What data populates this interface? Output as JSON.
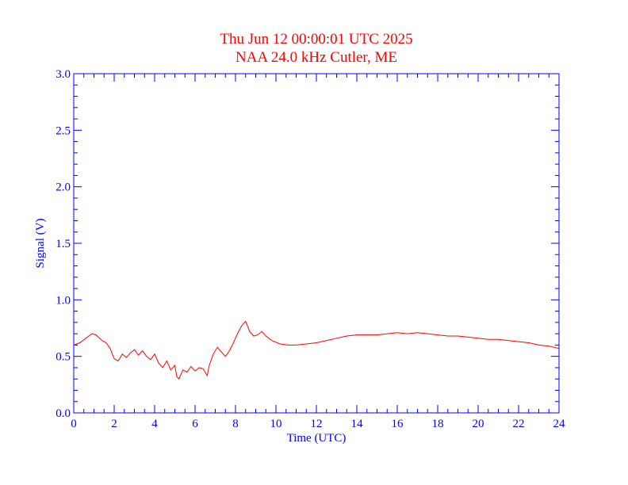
{
  "chart_data": {
    "type": "line",
    "title": "Thu Jun 12 00:00:01 UTC 2025",
    "subtitle": "NAA 24.0 kHz Cutler, ME",
    "xlabel": "Time (UTC)",
    "ylabel": "Signal (V)",
    "xlim": [
      0,
      24
    ],
    "ylim": [
      0,
      3.0
    ],
    "x_ticks": [
      "0",
      "2",
      "4",
      "6",
      "8",
      "10",
      "12",
      "14",
      "16",
      "18",
      "20",
      "22",
      "24"
    ],
    "y_ticks": [
      "0.0",
      "0.5",
      "1.0",
      "1.5",
      "2.0",
      "2.5",
      "3.0"
    ],
    "grid": false,
    "colors": {
      "axis": "#0000ff",
      "series": "#ff0000",
      "title": "#ff0000"
    },
    "series": [
      {
        "x": [
          0,
          0.3,
          0.6,
          0.9,
          1.1,
          1.4,
          1.6,
          1.8,
          2.0,
          2.2,
          2.4,
          2.6,
          2.8,
          3.0,
          3.2,
          3.4,
          3.6,
          3.8,
          4.0,
          4.2,
          4.4,
          4.6,
          4.8,
          5.0,
          5.1,
          5.2,
          5.4,
          5.6,
          5.8,
          6.0,
          6.2,
          6.4,
          6.6,
          6.7,
          6.9,
          7.1,
          7.3,
          7.5,
          7.7,
          7.9,
          8.1,
          8.3,
          8.5,
          8.7,
          8.9,
          9.1,
          9.3,
          9.5,
          9.8,
          10.2,
          10.6,
          11.0,
          11.5,
          12.0,
          12.5,
          13.0,
          13.5,
          14.0,
          14.5,
          15.0,
          15.5,
          16.0,
          16.5,
          17.0,
          17.5,
          18.0,
          18.5,
          19.0,
          19.5,
          20.0,
          20.5,
          21.0,
          21.5,
          22.0,
          22.5,
          23.0,
          23.5,
          24.0
        ],
        "values": [
          0.6,
          0.62,
          0.66,
          0.7,
          0.69,
          0.64,
          0.62,
          0.57,
          0.48,
          0.46,
          0.52,
          0.49,
          0.53,
          0.56,
          0.51,
          0.55,
          0.5,
          0.47,
          0.52,
          0.44,
          0.4,
          0.46,
          0.38,
          0.42,
          0.32,
          0.3,
          0.38,
          0.36,
          0.41,
          0.37,
          0.4,
          0.39,
          0.33,
          0.42,
          0.52,
          0.58,
          0.54,
          0.5,
          0.55,
          0.62,
          0.7,
          0.77,
          0.81,
          0.72,
          0.68,
          0.69,
          0.72,
          0.68,
          0.64,
          0.61,
          0.6,
          0.6,
          0.61,
          0.62,
          0.64,
          0.66,
          0.68,
          0.69,
          0.69,
          0.69,
          0.7,
          0.71,
          0.7,
          0.71,
          0.7,
          0.69,
          0.68,
          0.68,
          0.67,
          0.66,
          0.65,
          0.65,
          0.64,
          0.63,
          0.62,
          0.6,
          0.59,
          0.57
        ]
      }
    ]
  }
}
